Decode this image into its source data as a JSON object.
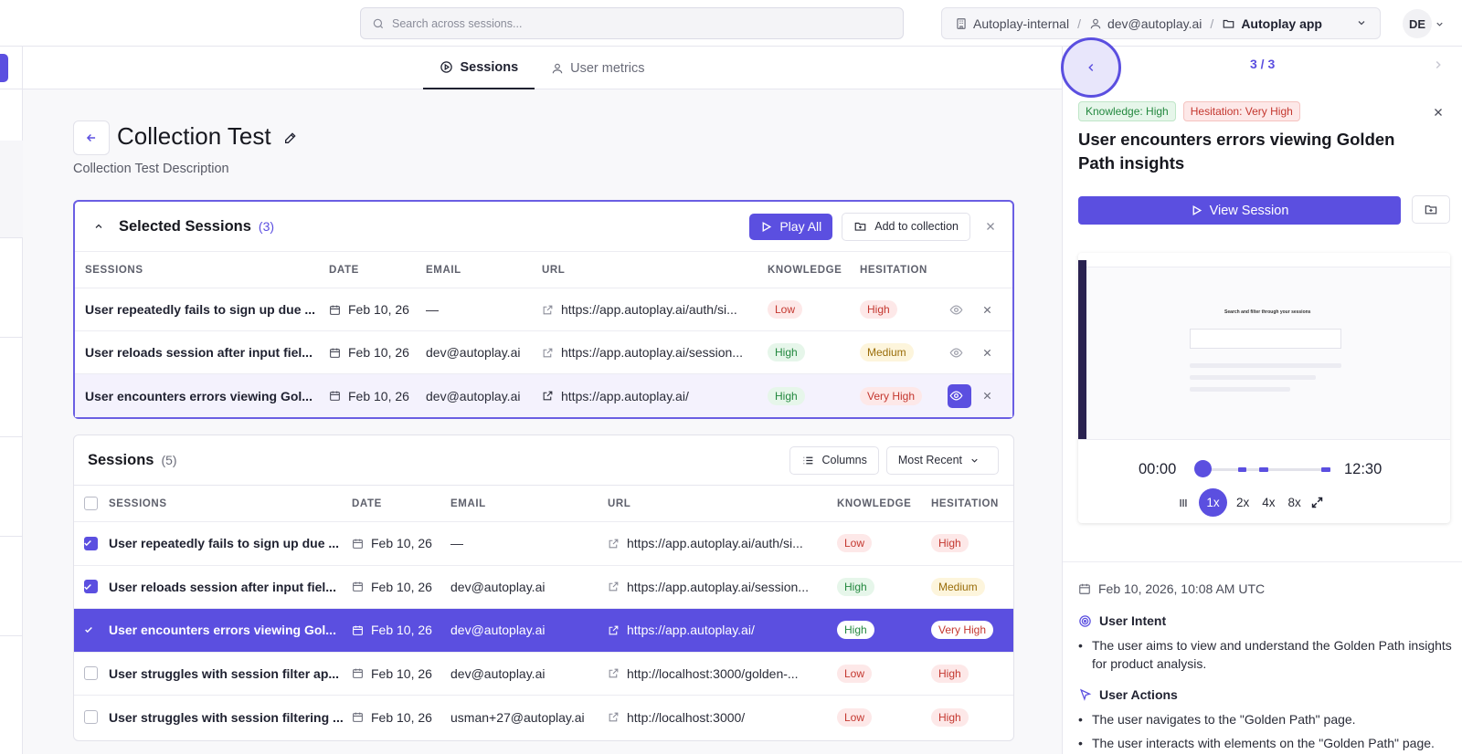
{
  "search": {
    "placeholder": "Search across sessions..."
  },
  "breadcrumb": {
    "org": "Autoplay-internal",
    "user": "dev@autoplay.ai",
    "app": "Autoplay app"
  },
  "avatar": {
    "initials": "DE"
  },
  "tabs": [
    {
      "label": "Sessions"
    },
    {
      "label": "User metrics"
    }
  ],
  "page": {
    "title": "Collection Test",
    "description": "Collection Test Description"
  },
  "selected": {
    "title": "Selected Sessions",
    "count": "(3)",
    "play_all": "Play All",
    "add_to_collection": "Add to collection",
    "columns": [
      "SESSIONS",
      "DATE",
      "EMAIL",
      "URL",
      "KNOWLEDGE",
      "HESITATION"
    ],
    "rows": [
      {
        "name": "User repeatedly fails to sign up due ...",
        "date": "Feb 10, 26",
        "email": "—",
        "url": "https://app.autoplay.ai/auth/si...",
        "knowledge": "Low",
        "hesitation": "High"
      },
      {
        "name": "User reloads session after input fiel...",
        "date": "Feb 10, 26",
        "email": "dev@autoplay.ai",
        "url": "https://app.autoplay.ai/session...",
        "knowledge": "High",
        "hesitation": "Medium"
      },
      {
        "name": "User encounters errors viewing Gol...",
        "date": "Feb 10, 26",
        "email": "dev@autoplay.ai",
        "url": "https://app.autoplay.ai/",
        "knowledge": "High",
        "hesitation": "Very High"
      }
    ]
  },
  "sessions": {
    "title": "Sessions",
    "count": "(5)",
    "columns_btn": "Columns",
    "sort": "Most Recent",
    "columns": [
      "SESSIONS",
      "DATE",
      "EMAIL",
      "URL",
      "KNOWLEDGE",
      "HESITATION"
    ],
    "rows": [
      {
        "name": "User repeatedly fails to sign up due ...",
        "date": "Feb 10, 26",
        "email": "—",
        "url": "https://app.autoplay.ai/auth/si...",
        "knowledge": "Low",
        "hesitation": "High"
      },
      {
        "name": "User reloads session after input fiel...",
        "date": "Feb 10, 26",
        "email": "dev@autoplay.ai",
        "url": "https://app.autoplay.ai/session...",
        "knowledge": "High",
        "hesitation": "Medium"
      },
      {
        "name": "User encounters errors viewing Gol...",
        "date": "Feb 10, 26",
        "email": "dev@autoplay.ai",
        "url": "https://app.autoplay.ai/",
        "knowledge": "High",
        "hesitation": "Very High"
      },
      {
        "name": "User struggles with session filter ap...",
        "date": "Feb 10, 26",
        "email": "dev@autoplay.ai",
        "url": "http://localhost:3000/golden-...",
        "knowledge": "Low",
        "hesitation": "High"
      },
      {
        "name": "User struggles with session filtering ...",
        "date": "Feb 10, 26",
        "email": "usman+27@autoplay.ai",
        "url": "http://localhost:3000/",
        "knowledge": "Low",
        "hesitation": "High"
      }
    ]
  },
  "panel": {
    "pager": "3 / 3",
    "tag_knowledge": "Knowledge: High",
    "tag_hesitation": "Hesitation: Very High",
    "title": "User encounters errors viewing Golden Path insights",
    "view_session": "View Session",
    "thumb_text": "Search and filter through your sessions",
    "time_start": "00:00",
    "time_end": "12:30",
    "speeds": [
      "1x",
      "2x",
      "4x",
      "8x"
    ],
    "datetime": "Feb 10, 2026, 10:08 AM UTC",
    "intent_title": "User Intent",
    "intent": "The user aims to view and understand the Golden Path insights for product analysis.",
    "actions_title": "User Actions",
    "actions": [
      "The user navigates to the \"Golden Path\" page.",
      "The user interacts with elements on the \"Golden Path\" page."
    ]
  },
  "colors": {
    "accent": "#5b4fe0"
  }
}
